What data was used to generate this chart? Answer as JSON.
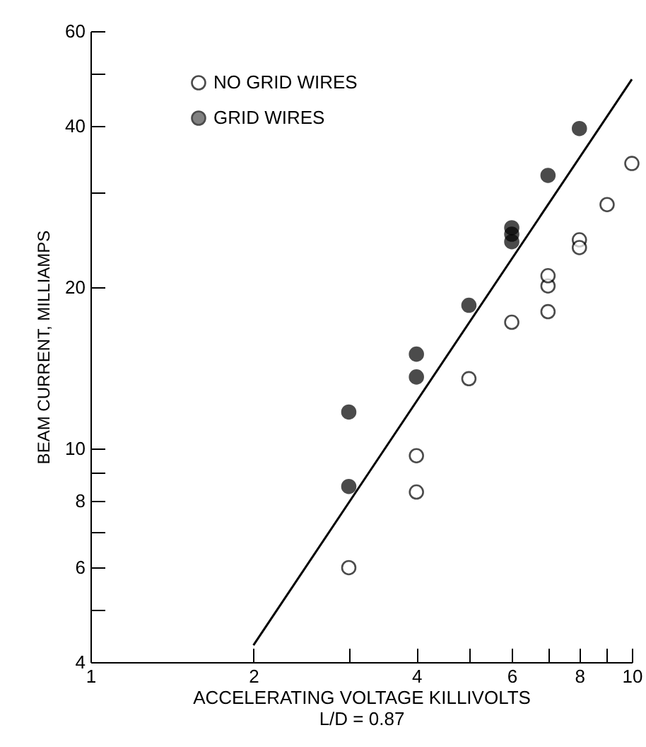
{
  "chart_data": {
    "type": "scatter",
    "xlabel": "ACCELERATING VOLTAGE KILLIVOLTS",
    "ylabel": "BEAM CURRENT, MILLIAMPS",
    "annotations": [
      "L/D = 0.87"
    ],
    "log": "xy",
    "xlim": [
      1,
      10
    ],
    "ylim": [
      4,
      60
    ],
    "xticks": [
      1,
      2,
      {
        "value": 3,
        "label": null
      },
      4,
      {
        "value": 5,
        "label": null
      },
      6,
      {
        "value": 7,
        "label": null
      },
      8,
      {
        "value": 9,
        "label": null
      },
      10
    ],
    "yticks": [
      4,
      {
        "value": 5,
        "label": null
      },
      6,
      {
        "value": 7,
        "label": null
      },
      8,
      {
        "value": 9,
        "label": null
      },
      10,
      20,
      {
        "value": 30,
        "label": null
      },
      40,
      {
        "value": 50,
        "label": null
      },
      60
    ],
    "grid": false,
    "legend": "top left",
    "series": [
      {
        "name": "NO GRID WIRES",
        "color": "#ffffff",
        "marker": "circle",
        "x": [
          3,
          4,
          4,
          5,
          6,
          7,
          7,
          7,
          8,
          8,
          9,
          10
        ],
        "values": [
          6,
          9.7,
          8.3,
          13.5,
          17.2,
          18,
          20.1,
          21,
          24.5,
          23.7,
          28.5,
          34
        ]
      },
      {
        "name": "GRID WIRES",
        "color": "#000000",
        "marker": "circle",
        "x": [
          3,
          3,
          4,
          4,
          5,
          6,
          6,
          6,
          7,
          8
        ],
        "values": [
          11.7,
          8.5,
          15,
          13.6,
          18.5,
          25.8,
          25.1,
          24.3,
          32.3,
          39.5
        ]
      },
      {
        "type": "line",
        "color": "#000000",
        "marker": "none",
        "x": [
          2,
          10
        ],
        "values": [
          4.3,
          48.8
        ]
      }
    ]
  }
}
